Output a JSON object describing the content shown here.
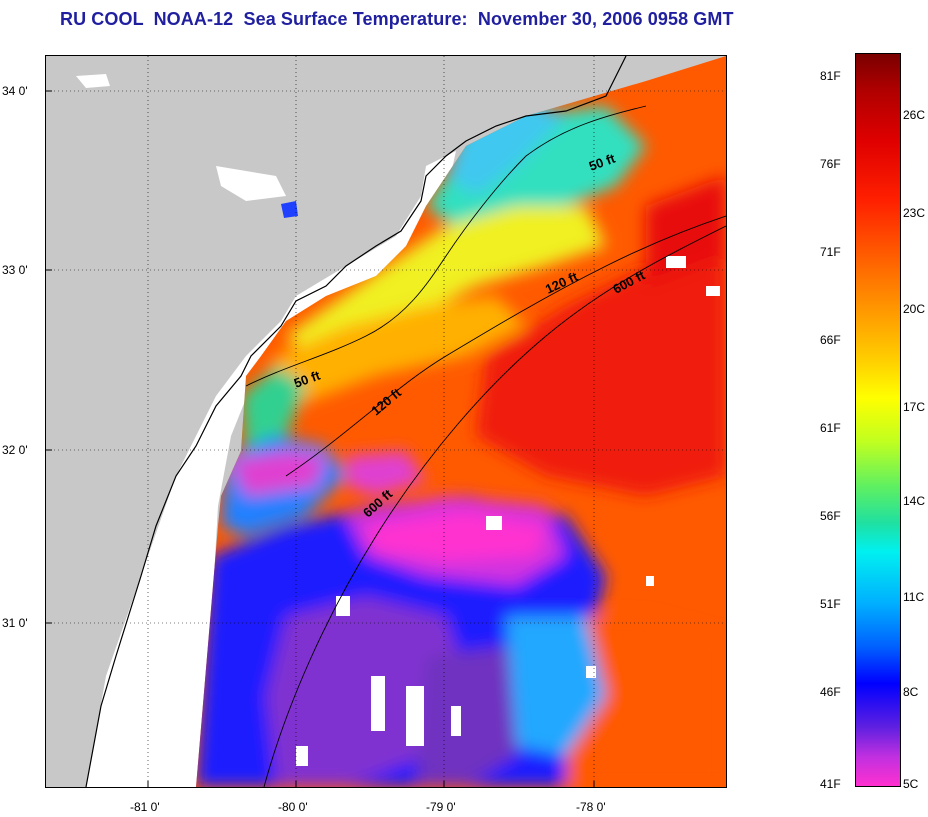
{
  "title": "RU COOL  NOAA-12  Sea Surface Temperature:  November 30, 2006 0958 GMT",
  "colors": {
    "title": "#1f1f9f",
    "land": "#c8c8c8",
    "no_data": "#ffffff"
  },
  "map": {
    "x_ticks": [
      "-81 0'",
      "-80 0'",
      "-79 0'",
      "-78 0'"
    ],
    "y_ticks": [
      "34 0'",
      "33 0'",
      "32 0'",
      "31 0'"
    ],
    "contour_labels": [
      "50 ft",
      "120 ft",
      "600 ft",
      "50 ft",
      "120 ft",
      "600 ft"
    ]
  },
  "colorbar": {
    "fahrenheit": [
      "81F",
      "76F",
      "71F",
      "66F",
      "61F",
      "56F",
      "51F",
      "46F",
      "41F"
    ],
    "celsius": [
      "26C",
      "23C",
      "20C",
      "17C",
      "14C",
      "11C",
      "8C",
      "5C"
    ]
  }
}
